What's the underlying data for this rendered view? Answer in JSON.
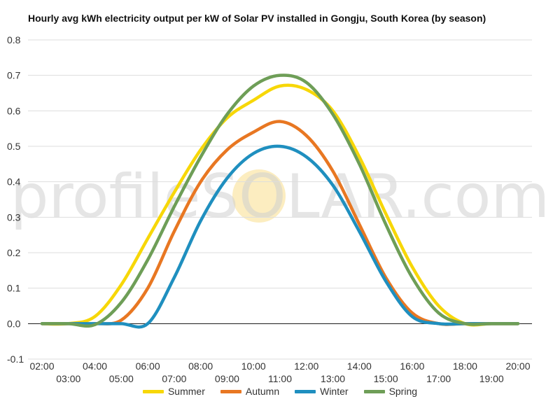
{
  "chart_data": {
    "type": "line",
    "title": "Hourly avg kWh electricity output per kW of Solar PV installed in Gongju, South Korea (by season)",
    "xlabel": "",
    "ylabel": "",
    "x": [
      "02:00",
      "03:00",
      "04:00",
      "05:00",
      "06:00",
      "07:00",
      "08:00",
      "09:00",
      "10:00",
      "11:00",
      "12:00",
      "13:00",
      "14:00",
      "15:00",
      "16:00",
      "17:00",
      "18:00",
      "19:00",
      "20:00"
    ],
    "ylim": [
      -0.1,
      0.8
    ],
    "yticks": [
      "-0.1",
      "0.0",
      "0.1",
      "0.2",
      "0.3",
      "0.4",
      "0.5",
      "0.6",
      "0.7",
      "0.8"
    ],
    "grid": true,
    "legend": "bottom",
    "series": [
      {
        "name": "Summer",
        "color": "#f7d708",
        "values": [
          0.0,
          0.0,
          0.02,
          0.11,
          0.24,
          0.37,
          0.49,
          0.58,
          0.63,
          0.67,
          0.66,
          0.6,
          0.47,
          0.31,
          0.16,
          0.05,
          0.0,
          0.0,
          0.0
        ]
      },
      {
        "name": "Autumn",
        "color": "#e87722",
        "values": [
          0.0,
          0.0,
          0.0,
          0.01,
          0.1,
          0.26,
          0.4,
          0.49,
          0.54,
          0.57,
          0.53,
          0.43,
          0.28,
          0.13,
          0.03,
          0.0,
          0.0,
          0.0,
          0.0
        ]
      },
      {
        "name": "Winter",
        "color": "#1f8fbf",
        "values": [
          0.0,
          0.0,
          0.0,
          0.0,
          0.0,
          0.13,
          0.29,
          0.41,
          0.48,
          0.5,
          0.47,
          0.39,
          0.26,
          0.12,
          0.02,
          0.0,
          0.0,
          0.0,
          0.0
        ]
      },
      {
        "name": "Spring",
        "color": "#6e9e57",
        "values": [
          0.0,
          0.0,
          -0.003,
          0.06,
          0.18,
          0.33,
          0.47,
          0.59,
          0.67,
          0.7,
          0.68,
          0.59,
          0.45,
          0.28,
          0.13,
          0.03,
          0.0,
          0.0,
          0.0
        ]
      }
    ],
    "watermark": "profileSOLAR.com"
  }
}
